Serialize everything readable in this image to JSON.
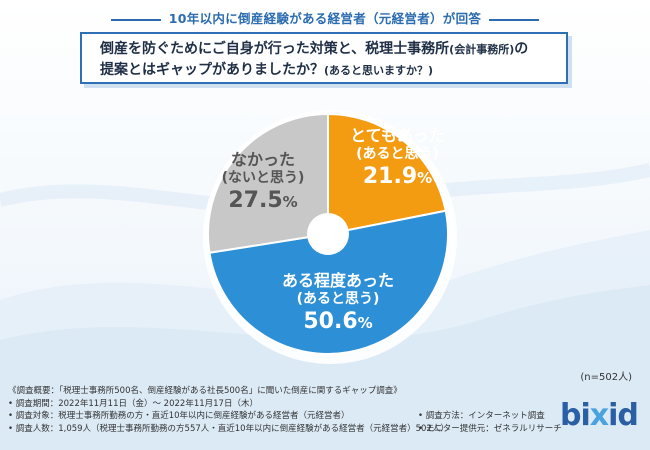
{
  "header": {
    "title": "10年以内に倒産経験がある経営者（元経営者）が回答"
  },
  "question": {
    "line1": "倒産を防ぐためにご自身が行った対策と、税理士事務所",
    "line1_small": "(会計事務所)",
    "line1_end": "の",
    "line2": "提案とはギャップがありましたか？",
    "line2_small": "(あると思いますか？)"
  },
  "chart_data": {
    "type": "pie",
    "title": "",
    "slices": [
      {
        "label": "とてもあった",
        "sublabel": "(あると思う)",
        "value": 21.9,
        "value_text": "21.9",
        "unit": "%",
        "color": "#f39c12"
      },
      {
        "label": "ある程度あった",
        "sublabel": "(あると思う)",
        "value": 50.6,
        "value_text": "50.6",
        "unit": "%",
        "color": "#2d8fd6"
      },
      {
        "label": "なかった",
        "sublabel": "(ないと思う)",
        "value": 27.5,
        "value_text": "27.5",
        "unit": "%",
        "color": "#c8c8c8"
      }
    ],
    "legend": "none"
  },
  "n_note": "(n=502人)",
  "footer": {
    "l1": "《調査概要：「税理士事務所500名、倒産経験がある社長500名」に聞いた倒産に関するギャップ調査》",
    "l2": "• 調査期間：2022年11月11日（金）〜 2022年11月17日（木）",
    "l3": "• 調査対象：税理士事務所勤務の方・直近10年以内に倒産経験がある経営者（元経営者）",
    "l4": "• 調査人数：1,059人（税理士事務所勤務の方557人・直近10年以内に倒産経験がある経営者（元経営者）502人）",
    "r1": "• 調査方法：インターネット調査",
    "r2": "• モニター提供元：ゼネラルリサーチ"
  },
  "logo": {
    "text_a": "bi",
    "text_b": "x",
    "text_c": "id"
  }
}
